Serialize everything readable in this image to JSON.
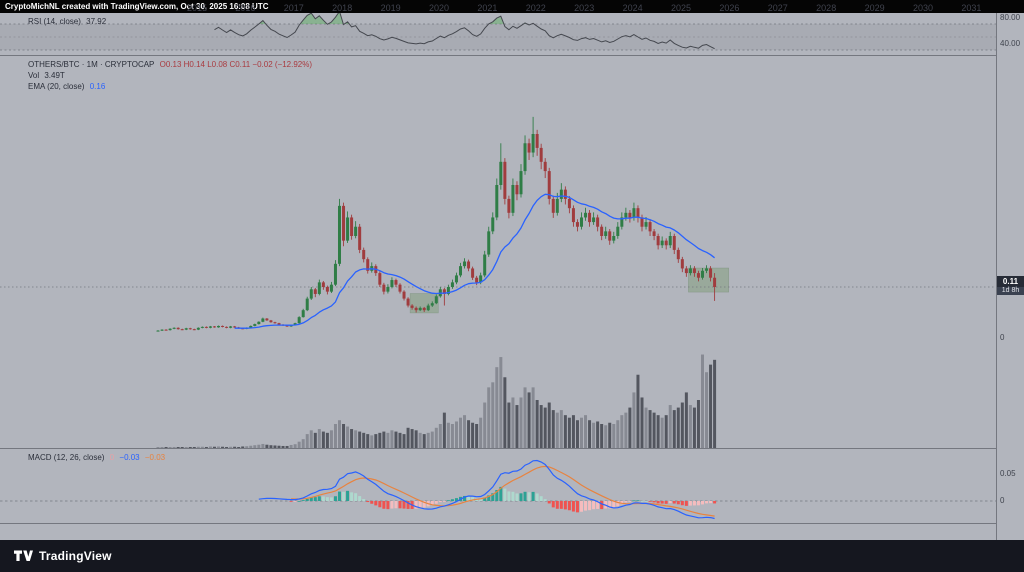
{
  "header": {
    "attribution": "CryptoMichNL created with TradingView.com, Oct 30, 2025 16:08 UTC"
  },
  "rsi_panel": {
    "legend_label": "RSI (14, close)",
    "value": "37.92",
    "axis_label_upper": "80.00",
    "axis_label_lower": "40.00"
  },
  "main_panel": {
    "symbol_line": "OTHERS/BTC · 1M · CRYPTOCAP",
    "ohlc_values": "O0.13  H0.14  L0.08  C0.11  −0.02 (−12.92%)",
    "vol_label": "Vol",
    "vol_value": "3.49T",
    "ema_label": "EMA (20, close)",
    "ema_value": "0.16",
    "axis_zero_label": "0",
    "price_badge": {
      "price": "0.11",
      "countdown": "1d 8h"
    }
  },
  "macd_panel": {
    "legend_label": "MACD (12, 26, close)",
    "hist_value": "0",
    "macd_value": "−0.03",
    "signal_value": "−0.03",
    "axis_label_upper": "0.05",
    "axis_label_zero": "0"
  },
  "time_axis": {
    "years": [
      "2015",
      "2016",
      "2017",
      "2018",
      "2019",
      "2020",
      "2021",
      "2022",
      "2023",
      "2024",
      "2025",
      "2026",
      "2027",
      "2028",
      "2029",
      "2030",
      "2031"
    ]
  },
  "footer": {
    "logo_text": "TradingView"
  },
  "colors": {
    "candle_up": "#2f7d46",
    "candle_down": "#a03c3e",
    "vol_up": "#878a93",
    "vol_down": "#53565f",
    "ema_line": "#2962ff",
    "rsi_line": "#45484f",
    "rsi_overbought_fill": "rgba(76,175,80,0.40)",
    "macd_line": "#2962ff",
    "signal_line": "#e8833f",
    "hist_pos_rise": "#2ba294",
    "hist_pos_fall": "#aed9ce",
    "hist_neg_fall": "#ef5350",
    "hist_neg_rise": "#f5bcbe",
    "highlight_box": "rgba(122,156,114,0.45)",
    "dashed_line": "#74777f",
    "legend_red": "#a93b40"
  },
  "chart_data": {
    "type": "candlestick",
    "symbol": "OTHERS/BTC",
    "interval": "1M",
    "start_month": "2014-04",
    "x_axis_years": [
      2015,
      2016,
      2017,
      2018,
      2019,
      2020,
      2021,
      2022,
      2023,
      2024,
      2025,
      2026,
      2027,
      2028,
      2029,
      2030,
      2031
    ],
    "y_axis": {
      "price_zero_label": "0",
      "current_price": 0.11,
      "visible_price_range": [
        0,
        0.49
      ]
    },
    "indicators": {
      "ema": {
        "length": 20,
        "source": "close",
        "last_value": 0.16
      },
      "rsi": {
        "length": 14,
        "source": "close",
        "last_value": 37.92,
        "bands": [
          70,
          30
        ],
        "axis_labels": [
          80,
          40
        ]
      },
      "macd": {
        "fast": 12,
        "slow": 26,
        "signal": 9,
        "last_hist": 0,
        "last_macd": -0.03,
        "last_signal": -0.03,
        "axis_labels": [
          0.05,
          0
        ]
      },
      "volume": {
        "unit": "T",
        "last_value": 3.49,
        "scale_max": 3.8
      }
    },
    "highlight_boxes": [
      {
        "from_index": 63,
        "to_index": 69,
        "price_low": 0.054,
        "price_high": 0.096
      },
      {
        "from_index": 132,
        "to_index": 141,
        "price_low": 0.099,
        "price_high": 0.151
      }
    ],
    "candles": [
      [
        0.015,
        0.017,
        0.014,
        0.016
      ],
      [
        0.016,
        0.019,
        0.015,
        0.018
      ],
      [
        0.018,
        0.019,
        0.016,
        0.017
      ],
      [
        0.017,
        0.021,
        0.016,
        0.02
      ],
      [
        0.02,
        0.023,
        0.019,
        0.022
      ],
      [
        0.022,
        0.023,
        0.018,
        0.019
      ],
      [
        0.019,
        0.02,
        0.017,
        0.018
      ],
      [
        0.018,
        0.022,
        0.017,
        0.021
      ],
      [
        0.021,
        0.022,
        0.018,
        0.019
      ],
      [
        0.019,
        0.02,
        0.017,
        0.018
      ],
      [
        0.018,
        0.023,
        0.017,
        0.022
      ],
      [
        0.022,
        0.025,
        0.021,
        0.024
      ],
      [
        0.024,
        0.025,
        0.021,
        0.022
      ],
      [
        0.022,
        0.026,
        0.021,
        0.025
      ],
      [
        0.025,
        0.026,
        0.022,
        0.023
      ],
      [
        0.023,
        0.027,
        0.022,
        0.026
      ],
      [
        0.026,
        0.027,
        0.023,
        0.024
      ],
      [
        0.024,
        0.025,
        0.021,
        0.022
      ],
      [
        0.022,
        0.026,
        0.021,
        0.025
      ],
      [
        0.025,
        0.026,
        0.022,
        0.023
      ],
      [
        0.023,
        0.024,
        0.02,
        0.021
      ],
      [
        0.021,
        0.022,
        0.019,
        0.02
      ],
      [
        0.02,
        0.023,
        0.019,
        0.022
      ],
      [
        0.022,
        0.027,
        0.021,
        0.026
      ],
      [
        0.026,
        0.031,
        0.025,
        0.03
      ],
      [
        0.03,
        0.036,
        0.029,
        0.035
      ],
      [
        0.035,
        0.044,
        0.034,
        0.042
      ],
      [
        0.042,
        0.043,
        0.037,
        0.038
      ],
      [
        0.038,
        0.039,
        0.033,
        0.034
      ],
      [
        0.034,
        0.035,
        0.031,
        0.032
      ],
      [
        0.032,
        0.033,
        0.028,
        0.029
      ],
      [
        0.029,
        0.03,
        0.026,
        0.027
      ],
      [
        0.027,
        0.028,
        0.024,
        0.025
      ],
      [
        0.025,
        0.029,
        0.024,
        0.028
      ],
      [
        0.028,
        0.033,
        0.027,
        0.032
      ],
      [
        0.032,
        0.047,
        0.031,
        0.045
      ],
      [
        0.045,
        0.063,
        0.044,
        0.06
      ],
      [
        0.06,
        0.089,
        0.058,
        0.085
      ],
      [
        0.085,
        0.11,
        0.082,
        0.105
      ],
      [
        0.105,
        0.108,
        0.088,
        0.095
      ],
      [
        0.095,
        0.126,
        0.092,
        0.12
      ],
      [
        0.12,
        0.123,
        0.104,
        0.11
      ],
      [
        0.11,
        0.113,
        0.094,
        0.1
      ],
      [
        0.1,
        0.121,
        0.097,
        0.115
      ],
      [
        0.115,
        0.168,
        0.112,
        0.16
      ],
      [
        0.16,
        0.3,
        0.155,
        0.285
      ],
      [
        0.285,
        0.292,
        0.198,
        0.21
      ],
      [
        0.21,
        0.273,
        0.205,
        0.26
      ],
      [
        0.26,
        0.266,
        0.212,
        0.22
      ],
      [
        0.22,
        0.252,
        0.215,
        0.24
      ],
      [
        0.24,
        0.246,
        0.183,
        0.19
      ],
      [
        0.19,
        0.195,
        0.163,
        0.17
      ],
      [
        0.17,
        0.174,
        0.139,
        0.145
      ],
      [
        0.145,
        0.163,
        0.141,
        0.155
      ],
      [
        0.155,
        0.159,
        0.134,
        0.14
      ],
      [
        0.14,
        0.144,
        0.11,
        0.115
      ],
      [
        0.115,
        0.119,
        0.094,
        0.1
      ],
      [
        0.1,
        0.116,
        0.096,
        0.11
      ],
      [
        0.11,
        0.131,
        0.107,
        0.125
      ],
      [
        0.125,
        0.128,
        0.11,
        0.115
      ],
      [
        0.115,
        0.118,
        0.096,
        0.1
      ],
      [
        0.1,
        0.103,
        0.081,
        0.085
      ],
      [
        0.085,
        0.088,
        0.066,
        0.07
      ],
      [
        0.07,
        0.073,
        0.061,
        0.065
      ],
      [
        0.065,
        0.068,
        0.055,
        0.06
      ],
      [
        0.06,
        0.068,
        0.058,
        0.065
      ],
      [
        0.065,
        0.067,
        0.056,
        0.06
      ],
      [
        0.06,
        0.074,
        0.058,
        0.07
      ],
      [
        0.07,
        0.079,
        0.067,
        0.075
      ],
      [
        0.075,
        0.094,
        0.073,
        0.09
      ],
      [
        0.09,
        0.11,
        0.087,
        0.105
      ],
      [
        0.105,
        0.108,
        0.07,
        0.095
      ],
      [
        0.095,
        0.115,
        0.092,
        0.11
      ],
      [
        0.11,
        0.126,
        0.106,
        0.12
      ],
      [
        0.12,
        0.141,
        0.116,
        0.135
      ],
      [
        0.135,
        0.162,
        0.131,
        0.155
      ],
      [
        0.155,
        0.172,
        0.15,
        0.165
      ],
      [
        0.165,
        0.169,
        0.144,
        0.15
      ],
      [
        0.15,
        0.154,
        0.125,
        0.13
      ],
      [
        0.13,
        0.134,
        0.114,
        0.12
      ],
      [
        0.12,
        0.141,
        0.116,
        0.135
      ],
      [
        0.135,
        0.188,
        0.131,
        0.18
      ],
      [
        0.18,
        0.24,
        0.175,
        0.23
      ],
      [
        0.23,
        0.271,
        0.224,
        0.26
      ],
      [
        0.26,
        0.344,
        0.254,
        0.33
      ],
      [
        0.33,
        0.42,
        0.32,
        0.38
      ],
      [
        0.38,
        0.388,
        0.288,
        0.3
      ],
      [
        0.3,
        0.307,
        0.258,
        0.27
      ],
      [
        0.27,
        0.344,
        0.263,
        0.33
      ],
      [
        0.33,
        0.338,
        0.297,
        0.31
      ],
      [
        0.31,
        0.375,
        0.303,
        0.36
      ],
      [
        0.36,
        0.437,
        0.352,
        0.42
      ],
      [
        0.42,
        0.43,
        0.384,
        0.4
      ],
      [
        0.4,
        0.477,
        0.39,
        0.44
      ],
      [
        0.44,
        0.449,
        0.393,
        0.41
      ],
      [
        0.41,
        0.419,
        0.364,
        0.38
      ],
      [
        0.38,
        0.388,
        0.345,
        0.36
      ],
      [
        0.36,
        0.367,
        0.288,
        0.3
      ],
      [
        0.3,
        0.307,
        0.259,
        0.27
      ],
      [
        0.27,
        0.313,
        0.264,
        0.3
      ],
      [
        0.3,
        0.334,
        0.293,
        0.32
      ],
      [
        0.32,
        0.327,
        0.288,
        0.3
      ],
      [
        0.3,
        0.306,
        0.269,
        0.28
      ],
      [
        0.28,
        0.286,
        0.24,
        0.25
      ],
      [
        0.25,
        0.256,
        0.23,
        0.24
      ],
      [
        0.24,
        0.271,
        0.234,
        0.26
      ],
      [
        0.26,
        0.281,
        0.253,
        0.27
      ],
      [
        0.27,
        0.276,
        0.24,
        0.25
      ],
      [
        0.25,
        0.271,
        0.244,
        0.26
      ],
      [
        0.26,
        0.266,
        0.23,
        0.24
      ],
      [
        0.24,
        0.245,
        0.211,
        0.22
      ],
      [
        0.22,
        0.24,
        0.214,
        0.23
      ],
      [
        0.23,
        0.235,
        0.201,
        0.21
      ],
      [
        0.21,
        0.229,
        0.204,
        0.22
      ],
      [
        0.22,
        0.25,
        0.214,
        0.24
      ],
      [
        0.24,
        0.271,
        0.234,
        0.26
      ],
      [
        0.26,
        0.281,
        0.253,
        0.27
      ],
      [
        0.27,
        0.276,
        0.249,
        0.26
      ],
      [
        0.26,
        0.292,
        0.253,
        0.28
      ],
      [
        0.28,
        0.286,
        0.249,
        0.26
      ],
      [
        0.26,
        0.266,
        0.23,
        0.24
      ],
      [
        0.24,
        0.261,
        0.234,
        0.25
      ],
      [
        0.25,
        0.256,
        0.22,
        0.23
      ],
      [
        0.23,
        0.235,
        0.211,
        0.22
      ],
      [
        0.22,
        0.225,
        0.191,
        0.2
      ],
      [
        0.2,
        0.219,
        0.194,
        0.21
      ],
      [
        0.21,
        0.215,
        0.191,
        0.2
      ],
      [
        0.2,
        0.229,
        0.194,
        0.22
      ],
      [
        0.22,
        0.225,
        0.181,
        0.19
      ],
      [
        0.19,
        0.195,
        0.162,
        0.17
      ],
      [
        0.17,
        0.175,
        0.142,
        0.15
      ],
      [
        0.15,
        0.155,
        0.132,
        0.14
      ],
      [
        0.14,
        0.157,
        0.135,
        0.15
      ],
      [
        0.15,
        0.155,
        0.132,
        0.14
      ],
      [
        0.14,
        0.145,
        0.122,
        0.13
      ],
      [
        0.13,
        0.151,
        0.126,
        0.145
      ],
      [
        0.145,
        0.157,
        0.14,
        0.15
      ],
      [
        0.15,
        0.155,
        0.122,
        0.13
      ],
      [
        0.13,
        0.14,
        0.08,
        0.11
      ]
    ],
    "volumes": [
      0.02,
      0.03,
      0.02,
      0.03,
      0.04,
      0.03,
      0.02,
      0.03,
      0.03,
      0.04,
      0.05,
      0.05,
      0.04,
      0.06,
      0.05,
      0.06,
      0.05,
      0.04,
      0.05,
      0.05,
      0.04,
      0.06,
      0.07,
      0.09,
      0.11,
      0.13,
      0.16,
      0.13,
      0.11,
      0.1,
      0.09,
      0.08,
      0.08,
      0.12,
      0.15,
      0.25,
      0.35,
      0.55,
      0.7,
      0.6,
      0.75,
      0.65,
      0.6,
      0.7,
      0.95,
      1.1,
      0.95,
      0.85,
      0.75,
      0.7,
      0.65,
      0.6,
      0.55,
      0.5,
      0.55,
      0.6,
      0.65,
      0.6,
      0.7,
      0.65,
      0.6,
      0.55,
      0.8,
      0.75,
      0.7,
      0.6,
      0.55,
      0.6,
      0.65,
      0.8,
      0.95,
      1.4,
      1.0,
      0.95,
      1.05,
      1.2,
      1.3,
      1.1,
      1.0,
      0.95,
      1.2,
      1.8,
      2.4,
      2.6,
      3.2,
      3.6,
      2.8,
      1.8,
      2.0,
      1.7,
      2.0,
      2.4,
      2.2,
      2.4,
      1.9,
      1.7,
      1.6,
      1.8,
      1.5,
      1.4,
      1.5,
      1.3,
      1.2,
      1.3,
      1.1,
      1.2,
      1.3,
      1.1,
      1.0,
      1.05,
      0.95,
      0.9,
      1.0,
      0.95,
      1.1,
      1.3,
      1.4,
      1.6,
      2.2,
      2.9,
      2.0,
      1.6,
      1.5,
      1.4,
      1.3,
      1.2,
      1.3,
      1.7,
      1.5,
      1.6,
      1.8,
      2.2,
      1.7,
      1.6,
      1.9,
      3.7,
      3.0,
      3.3,
      3.49
    ]
  }
}
